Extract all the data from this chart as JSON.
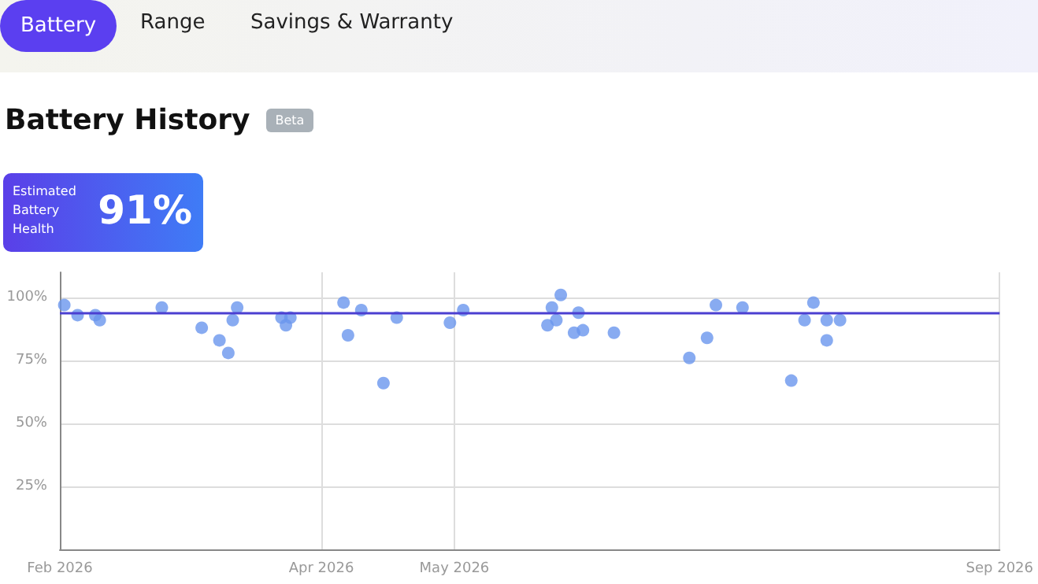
{
  "chart_data": {
    "type": "scatter",
    "title": "Battery History",
    "annotations": [
      "Battery",
      "Range",
      "Savings & Warranty",
      "Beta",
      "Estimated Battery Health",
      "91%"
    ],
    "x": [
      "2026-02-02",
      "2026-02-05",
      "2026-02-09",
      "2026-02-10",
      "2026-02-24",
      "2026-03-05",
      "2026-03-09",
      "2026-03-11",
      "2026-03-12",
      "2026-03-13",
      "2026-03-23",
      "2026-03-24",
      "2026-03-25",
      "2026-04-06",
      "2026-04-07",
      "2026-04-10",
      "2026-04-15",
      "2026-04-18",
      "2026-04-30",
      "2026-05-03",
      "2026-05-22",
      "2026-05-23",
      "2026-05-25",
      "2026-05-24",
      "2026-05-29",
      "2026-05-28",
      "2026-05-30",
      "2026-06-06",
      "2026-06-23",
      "2026-06-27",
      "2026-06-29",
      "2026-07-05",
      "2026-07-16",
      "2026-07-19",
      "2026-07-21",
      "2026-07-24",
      "2026-07-24",
      "2026-07-27"
    ],
    "series": [
      {
        "color": "#6a96ee",
        "values": [
          97,
          93,
          93,
          91,
          96,
          88,
          83,
          78,
          91,
          96,
          92,
          89,
          92,
          98,
          85,
          95,
          66,
          92,
          90,
          95,
          89,
          96,
          101,
          91,
          94,
          86,
          87,
          86,
          76,
          84,
          97,
          96,
          67,
          91,
          98,
          83,
          91,
          91
        ]
      }
    ],
    "xlim": [
      "2026-02-01",
      "2026-09-01"
    ],
    "xticks": [
      {
        "value": "2026-02-01",
        "label": "Feb 2026"
      },
      {
        "value": "2026-04-01",
        "label": "Apr 2026"
      },
      {
        "value": "2026-05-01",
        "label": "May 2026"
      },
      {
        "value": "2026-09-01",
        "label": "Sep 2026"
      }
    ],
    "ylim": [
      0,
      110
    ],
    "yticks": [
      {
        "value": 25,
        "label": "25%"
      },
      {
        "value": 50,
        "label": "50%"
      },
      {
        "value": 75,
        "label": "75%"
      },
      {
        "value": 100,
        "label": "100%"
      }
    ],
    "ref_lines": [
      {
        "axis": "y",
        "value": 94,
        "color": "#4b3fd1"
      }
    ],
    "grid": true,
    "marker": "circle"
  }
}
